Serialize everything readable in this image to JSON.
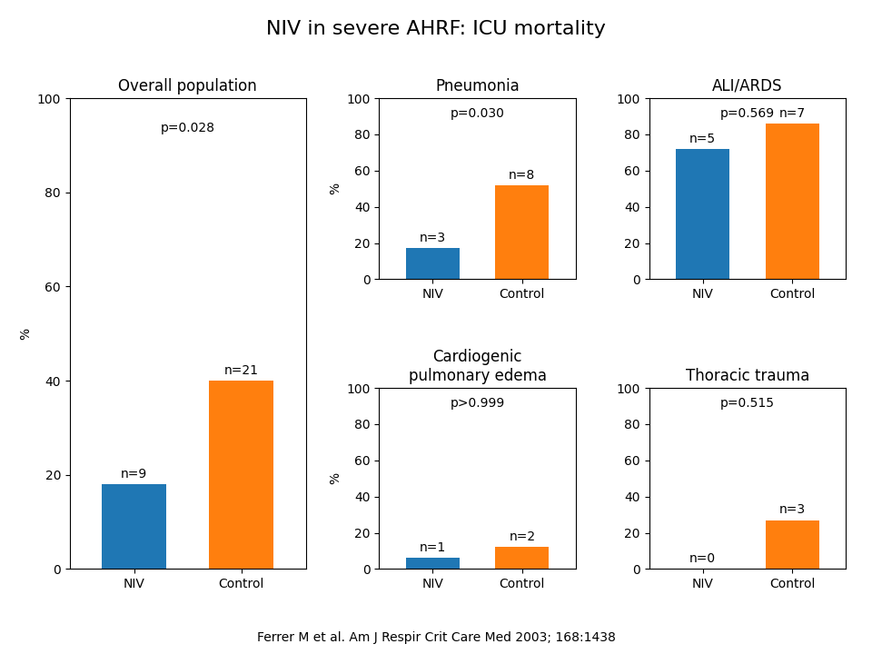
{
  "title": "NIV in severe AHRF: ICU mortality",
  "source": "Ferrer M et al. Am J Respir Crit Care Med 2003; 168:1438",
  "chart_data": [
    {
      "type": "bar",
      "title": "Overall population",
      "categories": [
        "NIV",
        "Control"
      ],
      "values": [
        18,
        40
      ],
      "ylabel": "%",
      "ylim": [
        0,
        100
      ],
      "yticks": [
        0,
        20,
        40,
        60,
        80,
        100
      ],
      "annotations": [
        {
          "category": "NIV",
          "text": "n=9"
        },
        {
          "category": "Control",
          "text": "n=21"
        },
        {
          "text": "p=0.028"
        }
      ]
    },
    {
      "type": "bar",
      "title": "Pneumonia",
      "categories": [
        "NIV",
        "Control"
      ],
      "values": [
        17,
        52
      ],
      "ylabel": "%",
      "ylim": [
        0,
        100
      ],
      "yticks": [
        0,
        20,
        40,
        60,
        80,
        100
      ],
      "annotations": [
        {
          "category": "NIV",
          "text": "n=3"
        },
        {
          "category": "Control",
          "text": "n=8"
        },
        {
          "text": "p=0.030"
        }
      ]
    },
    {
      "type": "bar",
      "title": "ALI/ARDS",
      "categories": [
        "NIV",
        "Control"
      ],
      "values": [
        72,
        86
      ],
      "ylim": [
        0,
        100
      ],
      "yticks": [
        0,
        20,
        40,
        60,
        80,
        100
      ],
      "annotations": [
        {
          "category": "NIV",
          "text": "n=5"
        },
        {
          "category": "Control",
          "text": "n=7"
        },
        {
          "text": "p=0.569"
        }
      ]
    },
    {
      "type": "bar",
      "title": "Cardiogenic\npulmonary edema",
      "categories": [
        "NIV",
        "Control"
      ],
      "values": [
        6,
        12
      ],
      "ylabel": "%",
      "ylim": [
        0,
        100
      ],
      "yticks": [
        0,
        20,
        40,
        60,
        80,
        100
      ],
      "annotations": [
        {
          "category": "NIV",
          "text": "n=1"
        },
        {
          "category": "Control",
          "text": "n=2"
        },
        {
          "text": "p>0.999"
        }
      ]
    },
    {
      "type": "bar",
      "title": "Thoracic trauma",
      "categories": [
        "NIV",
        "Control"
      ],
      "values": [
        0,
        27
      ],
      "ylim": [
        0,
        100
      ],
      "yticks": [
        0,
        20,
        40,
        60,
        80,
        100
      ],
      "annotations": [
        {
          "category": "NIV",
          "text": "n=0"
        },
        {
          "category": "Control",
          "text": "n=3"
        },
        {
          "text": "p=0.515"
        }
      ]
    }
  ]
}
